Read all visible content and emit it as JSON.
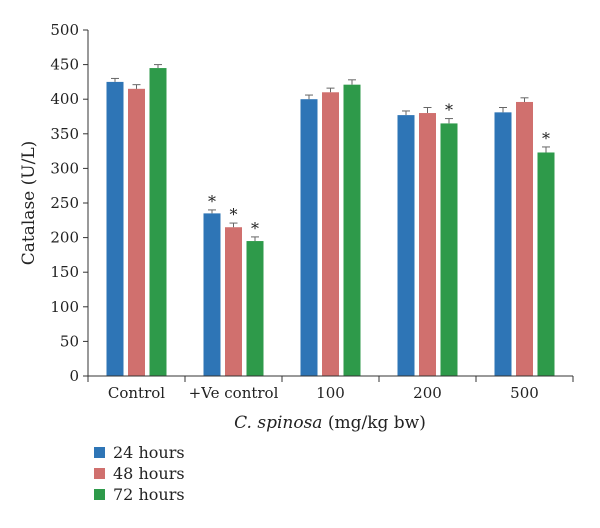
{
  "chart_data": {
    "type": "bar",
    "categories": [
      "Control",
      "+Ve control",
      "100",
      "200",
      "500"
    ],
    "xlabel_italic": "C. spinosa",
    "xlabel_rest": " (mg/kg bw)",
    "ylabel": "Catalase (U/L)",
    "ylim": [
      0,
      500
    ],
    "yticks": [
      "0",
      "50",
      "100",
      "150",
      "200",
      "250",
      "300",
      "350",
      "400",
      "450",
      "500"
    ],
    "grid": false,
    "legend_position": "bottom-left",
    "significance_marker": "*",
    "series": [
      {
        "name": "24 hours",
        "color": "#2e75b6",
        "values": [
          425,
          235,
          400,
          377,
          381
        ],
        "errors": [
          5,
          5,
          6,
          6,
          7
        ],
        "significant": [
          false,
          true,
          false,
          false,
          false
        ]
      },
      {
        "name": "48 hours",
        "color": "#d0706e",
        "values": [
          415,
          215,
          410,
          380,
          396
        ],
        "errors": [
          6,
          6,
          6,
          8,
          6
        ],
        "significant": [
          false,
          true,
          false,
          false,
          false
        ]
      },
      {
        "name": "72 hours",
        "color": "#2e9a4a",
        "values": [
          445,
          195,
          421,
          365,
          323
        ],
        "errors": [
          5,
          6,
          7,
          7,
          8
        ],
        "significant": [
          false,
          true,
          false,
          true,
          true
        ]
      }
    ]
  }
}
